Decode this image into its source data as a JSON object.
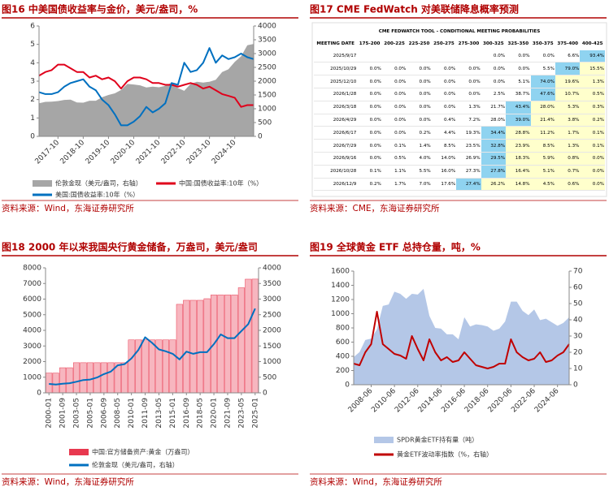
{
  "chart_data": [
    {
      "type": "combo",
      "title": "图16  中美国债收益率与金价，美元/盎司，%",
      "source": "资料来源：Wind，东海证券研究所",
      "categories": [
        null,
        null,
        null,
        "2017-10",
        null,
        null,
        null,
        "2018-10",
        null,
        null,
        null,
        "2019-10",
        null,
        null,
        null,
        "2020-10",
        null,
        null,
        null,
        "2021-10",
        null,
        null,
        null,
        "2022-10",
        null,
        null,
        null,
        "2023-10",
        null,
        null,
        null,
        "2024-10",
        null,
        null,
        null
      ],
      "ylim": [
        0,
        6
      ],
      "yticks": [
        0,
        1,
        2,
        3,
        4,
        5,
        6
      ],
      "y2lim": [
        0,
        4000
      ],
      "y2ticks": [
        0,
        500,
        1000,
        1500,
        2000,
        2500,
        3000,
        3500,
        4000
      ],
      "series": [
        {
          "name": "伦敦金现（美元/盎司，右轴）",
          "type": "area",
          "axis": "y2",
          "color": "#a6a6a6",
          "values": [
            1200,
            1250,
            1260,
            1280,
            1320,
            1330,
            1230,
            1220,
            1290,
            1290,
            1420,
            1500,
            1560,
            1680,
            1900,
            1880,
            1850,
            1770,
            1800,
            1780,
            1830,
            1950,
            1750,
            1650,
            1900,
            1980,
            1950,
            1980,
            2050,
            2330,
            2430,
            2700,
            2900,
            3300,
            3350
          ]
        },
        {
          "name": "中国:国债收益率:10年（%）",
          "type": "line",
          "color": "#e0001b",
          "values": [
            3.3,
            3.5,
            3.6,
            3.9,
            3.9,
            3.7,
            3.5,
            3.5,
            3.2,
            3.3,
            3.1,
            3.2,
            3.0,
            2.6,
            3.0,
            3.2,
            3.2,
            3.1,
            2.9,
            2.9,
            2.8,
            2.8,
            2.7,
            2.8,
            2.9,
            2.8,
            2.6,
            2.7,
            2.5,
            2.3,
            2.2,
            2.1,
            1.6,
            1.7,
            1.7
          ]
        },
        {
          "name": "美国:国债收益率:10年（%）",
          "type": "line",
          "color": "#0070c0",
          "values": [
            2.4,
            2.3,
            2.3,
            2.4,
            2.7,
            2.9,
            3.0,
            3.1,
            2.7,
            2.5,
            2.0,
            1.7,
            1.2,
            0.6,
            0.6,
            0.8,
            1.1,
            1.6,
            1.3,
            1.5,
            1.8,
            2.9,
            2.8,
            4.0,
            3.5,
            3.6,
            4.0,
            4.8,
            4.0,
            4.4,
            4.2,
            4.3,
            4.5,
            4.3,
            4.2
          ]
        }
      ]
    },
    {
      "type": "combo",
      "title": "图18  2000 年以来我国央行黄金储备，万盎司，美元/盎司",
      "source": "资料来源：Wind，东海证券研究所",
      "categories": [
        "2000-01",
        null,
        "2001-09",
        null,
        "2003-05",
        null,
        "2005-01",
        null,
        "2006-09",
        null,
        "2008-05",
        null,
        "2010-01",
        null,
        "2011-09",
        null,
        "2013-05",
        null,
        "2015-01",
        null,
        "2016-09",
        null,
        "2018-05",
        null,
        "2020-01",
        null,
        "2021-09",
        null,
        "2023-05",
        null,
        "2025-01"
      ],
      "ylim": [
        0,
        8000
      ],
      "yticks": [
        0,
        1000,
        2000,
        3000,
        4000,
        5000,
        6000,
        7000,
        8000
      ],
      "y2lim": [
        0,
        4000
      ],
      "y2ticks": [
        0,
        500,
        1000,
        1500,
        2000,
        2500,
        3000,
        3500,
        4000
      ],
      "series": [
        {
          "name": "中国:官方储备资产:黄金（万盎司）",
          "type": "bar",
          "color": "#f7b6bf",
          "edge": "#e8384f",
          "values": [
            1267,
            1267,
            1608,
            1608,
            1929,
            1929,
            1929,
            1929,
            1929,
            1929,
            1929,
            1929,
            3389,
            3389,
            3389,
            3389,
            3389,
            3389,
            3389,
            5666,
            5924,
            5924,
            5924,
            6026,
            6264,
            6264,
            6264,
            6264,
            6727,
            7274,
            7280
          ]
        },
        {
          "name": "伦敦金现（美元/盎司，右轴）",
          "type": "line",
          "axis": "y2",
          "color": "#0070c0",
          "values": [
            285,
            265,
            290,
            310,
            355,
            410,
            425,
            490,
            600,
            680,
            880,
            920,
            1100,
            1370,
            1780,
            1600,
            1390,
            1330,
            1250,
            1070,
            1320,
            1250,
            1300,
            1300,
            1560,
            1870,
            1750,
            1750,
            1980,
            2200,
            2700
          ]
        }
      ]
    },
    {
      "type": "combo",
      "title": "图19  全球黄金 ETF 总持仓量，吨，%",
      "source": "资料来源：Wind，东海证券研究所",
      "categories": [
        null,
        null,
        null,
        "2008-06",
        null,
        null,
        null,
        "2010-06",
        null,
        null,
        null,
        "2012-06",
        null,
        null,
        null,
        "2014-06",
        null,
        null,
        null,
        "2016-06",
        null,
        null,
        null,
        "2018-06",
        null,
        null,
        null,
        "2020-06",
        null,
        null,
        null,
        "2022-06",
        null,
        null,
        null,
        "2024-06",
        null,
        null
      ],
      "ylim": [
        0,
        1600
      ],
      "yticks": [
        0,
        200,
        400,
        600,
        800,
        1000,
        1200,
        1400,
        1600
      ],
      "y2lim": [
        0,
        70
      ],
      "y2ticks": [
        0,
        10,
        20,
        30,
        40,
        50,
        60,
        70
      ],
      "series": [
        {
          "name": "SPDR黄金ETF持有量（吨）",
          "type": "area",
          "color": "#b4c7e7",
          "values": [
            390,
            460,
            630,
            650,
            780,
            1110,
            1130,
            1310,
            1280,
            1210,
            1280,
            1270,
            1350,
            970,
            800,
            790,
            710,
            710,
            640,
            950,
            820,
            850,
            840,
            820,
            760,
            790,
            890,
            1170,
            1170,
            1040,
            980,
            1060,
            910,
            930,
            880,
            830,
            870,
            950
          ]
        },
        {
          "name": "黄金ETF波动率指数（%，右轴）",
          "type": "line",
          "axis": "y2",
          "color": "#c00000",
          "values": [
            13,
            12,
            20,
            25,
            45,
            25,
            22,
            19,
            18,
            16,
            30,
            22,
            15,
            28,
            20,
            15,
            17,
            14,
            15,
            20,
            16,
            12,
            11,
            10,
            11,
            13,
            13,
            28,
            20,
            17,
            15,
            16,
            20,
            14,
            15,
            18,
            20,
            25
          ]
        }
      ]
    }
  ],
  "table_figure": {
    "title": "图17  CME FedWatch 对美联储降息概率预测",
    "source": "资料来源：CME，东海证券研究所",
    "table": {
      "title": "CME FEDWATCH TOOL - CONDITIONAL MEETING PROBABILITIES",
      "header": [
        "MEETING DATE",
        "175-200",
        "200-225",
        "225-250",
        "250-275",
        "275-300",
        "300-325",
        "325-350",
        "350-375",
        "375-400",
        "400-425"
      ],
      "rows": [
        [
          "2025/9/17",
          null,
          null,
          null,
          null,
          null,
          "0.0%",
          "0.0%",
          "0.0%",
          "6.6%",
          "93.4%"
        ],
        [
          "2025/10/29",
          "0.0%",
          "0.0%",
          "0.0%",
          "0.0%",
          "0.0%",
          "0.0%",
          "0.0%",
          "5.5%",
          "79.0%",
          "15.5%"
        ],
        [
          "2025/12/10",
          "0.0%",
          "0.0%",
          "0.0%",
          "0.0%",
          "0.0%",
          "0.0%",
          "5.1%",
          "74.0%",
          "19.6%",
          "1.3%"
        ],
        [
          "2026/1/28",
          "0.0%",
          "0.0%",
          "0.0%",
          "0.0%",
          "0.0%",
          "2.5%",
          "38.7%",
          "47.6%",
          "10.7%",
          "0.5%"
        ],
        [
          "2026/3/18",
          "0.0%",
          "0.0%",
          "0.0%",
          "0.0%",
          "1.3%",
          "21.7%",
          "43.4%",
          "28.0%",
          "5.3%",
          "0.3%"
        ],
        [
          "2026/4/29",
          "0.0%",
          "0.0%",
          "0.0%",
          "0.4%",
          "7.2%",
          "28.0%",
          "39.0%",
          "21.4%",
          "3.8%",
          "0.2%"
        ],
        [
          "2026/6/17",
          "0.0%",
          "0.0%",
          "0.2%",
          "4.4%",
          "19.3%",
          "34.4%",
          "28.8%",
          "11.2%",
          "1.7%",
          "0.1%"
        ],
        [
          "2026/7/29",
          "0.0%",
          "0.1%",
          "1.4%",
          "8.5%",
          "23.5%",
          "32.8%",
          "23.9%",
          "8.5%",
          "1.3%",
          "0.1%"
        ],
        [
          "2026/9/16",
          "0.0%",
          "0.5%",
          "4.0%",
          "14.0%",
          "26.9%",
          "29.5%",
          "18.3%",
          "5.9%",
          "0.8%",
          "0.0%"
        ],
        [
          "2026/10/28",
          "0.1%",
          "1.1%",
          "5.5%",
          "16.0%",
          "27.3%",
          "27.8%",
          "16.4%",
          "5.1%",
          "0.7%",
          "0.0%"
        ],
        [
          "2026/12/9",
          "0.2%",
          "1.7%",
          "7.0%",
          "17.6%",
          "27.4%",
          "26.2%",
          "14.8%",
          "4.5%",
          "0.6%",
          "0.0%"
        ]
      ]
    }
  }
}
